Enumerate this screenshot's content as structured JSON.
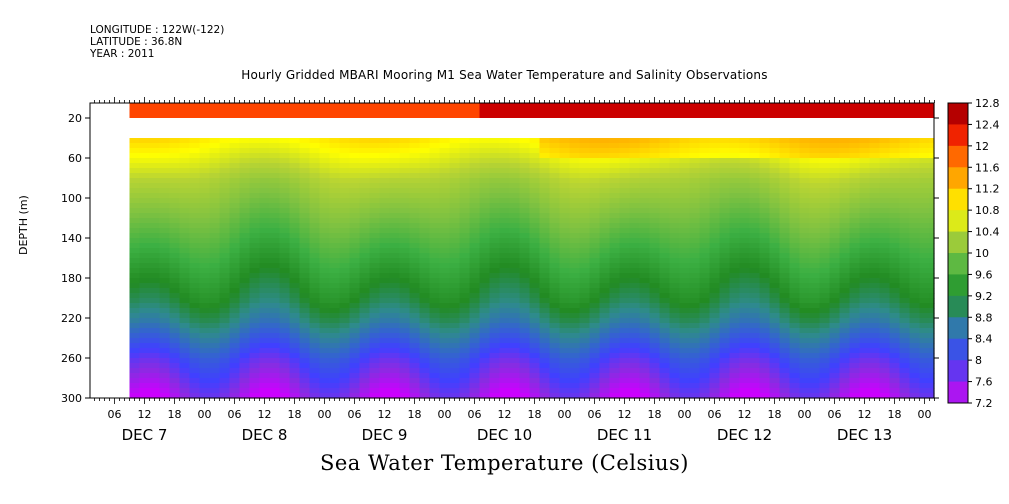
{
  "header": {
    "longitude": "LONGITUDE : 122W(-122)",
    "latitude": "LATITUDE : 36.8N",
    "year": "YEAR : 2011",
    "title": "Hourly Gridded MBARI Mooring M1 Sea Water Temperature and Salinity Observations"
  },
  "footer": {
    "title": "Sea Water Temperature (Celsius)"
  },
  "chart_data": {
    "type": "heatmap",
    "title": "Hourly Gridded MBARI Mooring M1 Sea Water Temperature and Salinity Observations",
    "bottom_title": "Sea Water Temperature (Celsius)",
    "ylabel": "DEPTH (m)",
    "ylim": [
      300,
      0
    ],
    "y_ticks": [
      20,
      60,
      100,
      140,
      180,
      220,
      260,
      300
    ],
    "x_hour_ticks": [
      "06",
      "12",
      "18",
      "00",
      "06",
      "12",
      "18",
      "00",
      "06",
      "12",
      "18",
      "00",
      "06",
      "12",
      "18",
      "00",
      "06",
      "12",
      "18",
      "00",
      "06",
      "12",
      "18",
      "00",
      "06",
      "12",
      "18",
      "00"
    ],
    "x_day_labels": [
      "DEC  7",
      "DEC  8",
      "DEC  9",
      "DEC 10",
      "DEC 11",
      "DEC 12",
      "DEC 13"
    ],
    "data_start_hour": 9,
    "day_start": "DEC 7 2011 00:00",
    "colorbar_ticks": [
      12.8,
      12.4,
      12,
      11.6,
      11.2,
      10.8,
      10.4,
      10,
      9.6,
      9.2,
      8.8,
      8.4,
      8,
      7.6,
      7.2
    ],
    "color_scale": [
      "#cc00ff",
      "#8a2be2",
      "#4040ff",
      "#3366cc",
      "#2e8b8b",
      "#228b22",
      "#3cb043",
      "#7fc241",
      "#b8d433",
      "#ffff00",
      "#ffc000",
      "#ff8c00",
      "#ff4500",
      "#e00000",
      "#8b0000"
    ],
    "depths": [
      10,
      40,
      60,
      80,
      100,
      120,
      140,
      160,
      180,
      200,
      220,
      240,
      260,
      280,
      300
    ],
    "temperature_profile_typical": [
      12.2,
      10.9,
      10.6,
      10.3,
      10.1,
      9.9,
      9.7,
      9.5,
      9.3,
      9.1,
      8.8,
      8.4,
      8.0,
      7.7,
      7.4
    ],
    "surface_temperature": [
      {
        "period": "before DEC 10 06",
        "value": 12.0
      },
      {
        "period": "after DEC 10 06",
        "value": 12.5
      }
    ],
    "missing_depth_range": [
      20,
      40
    ]
  }
}
